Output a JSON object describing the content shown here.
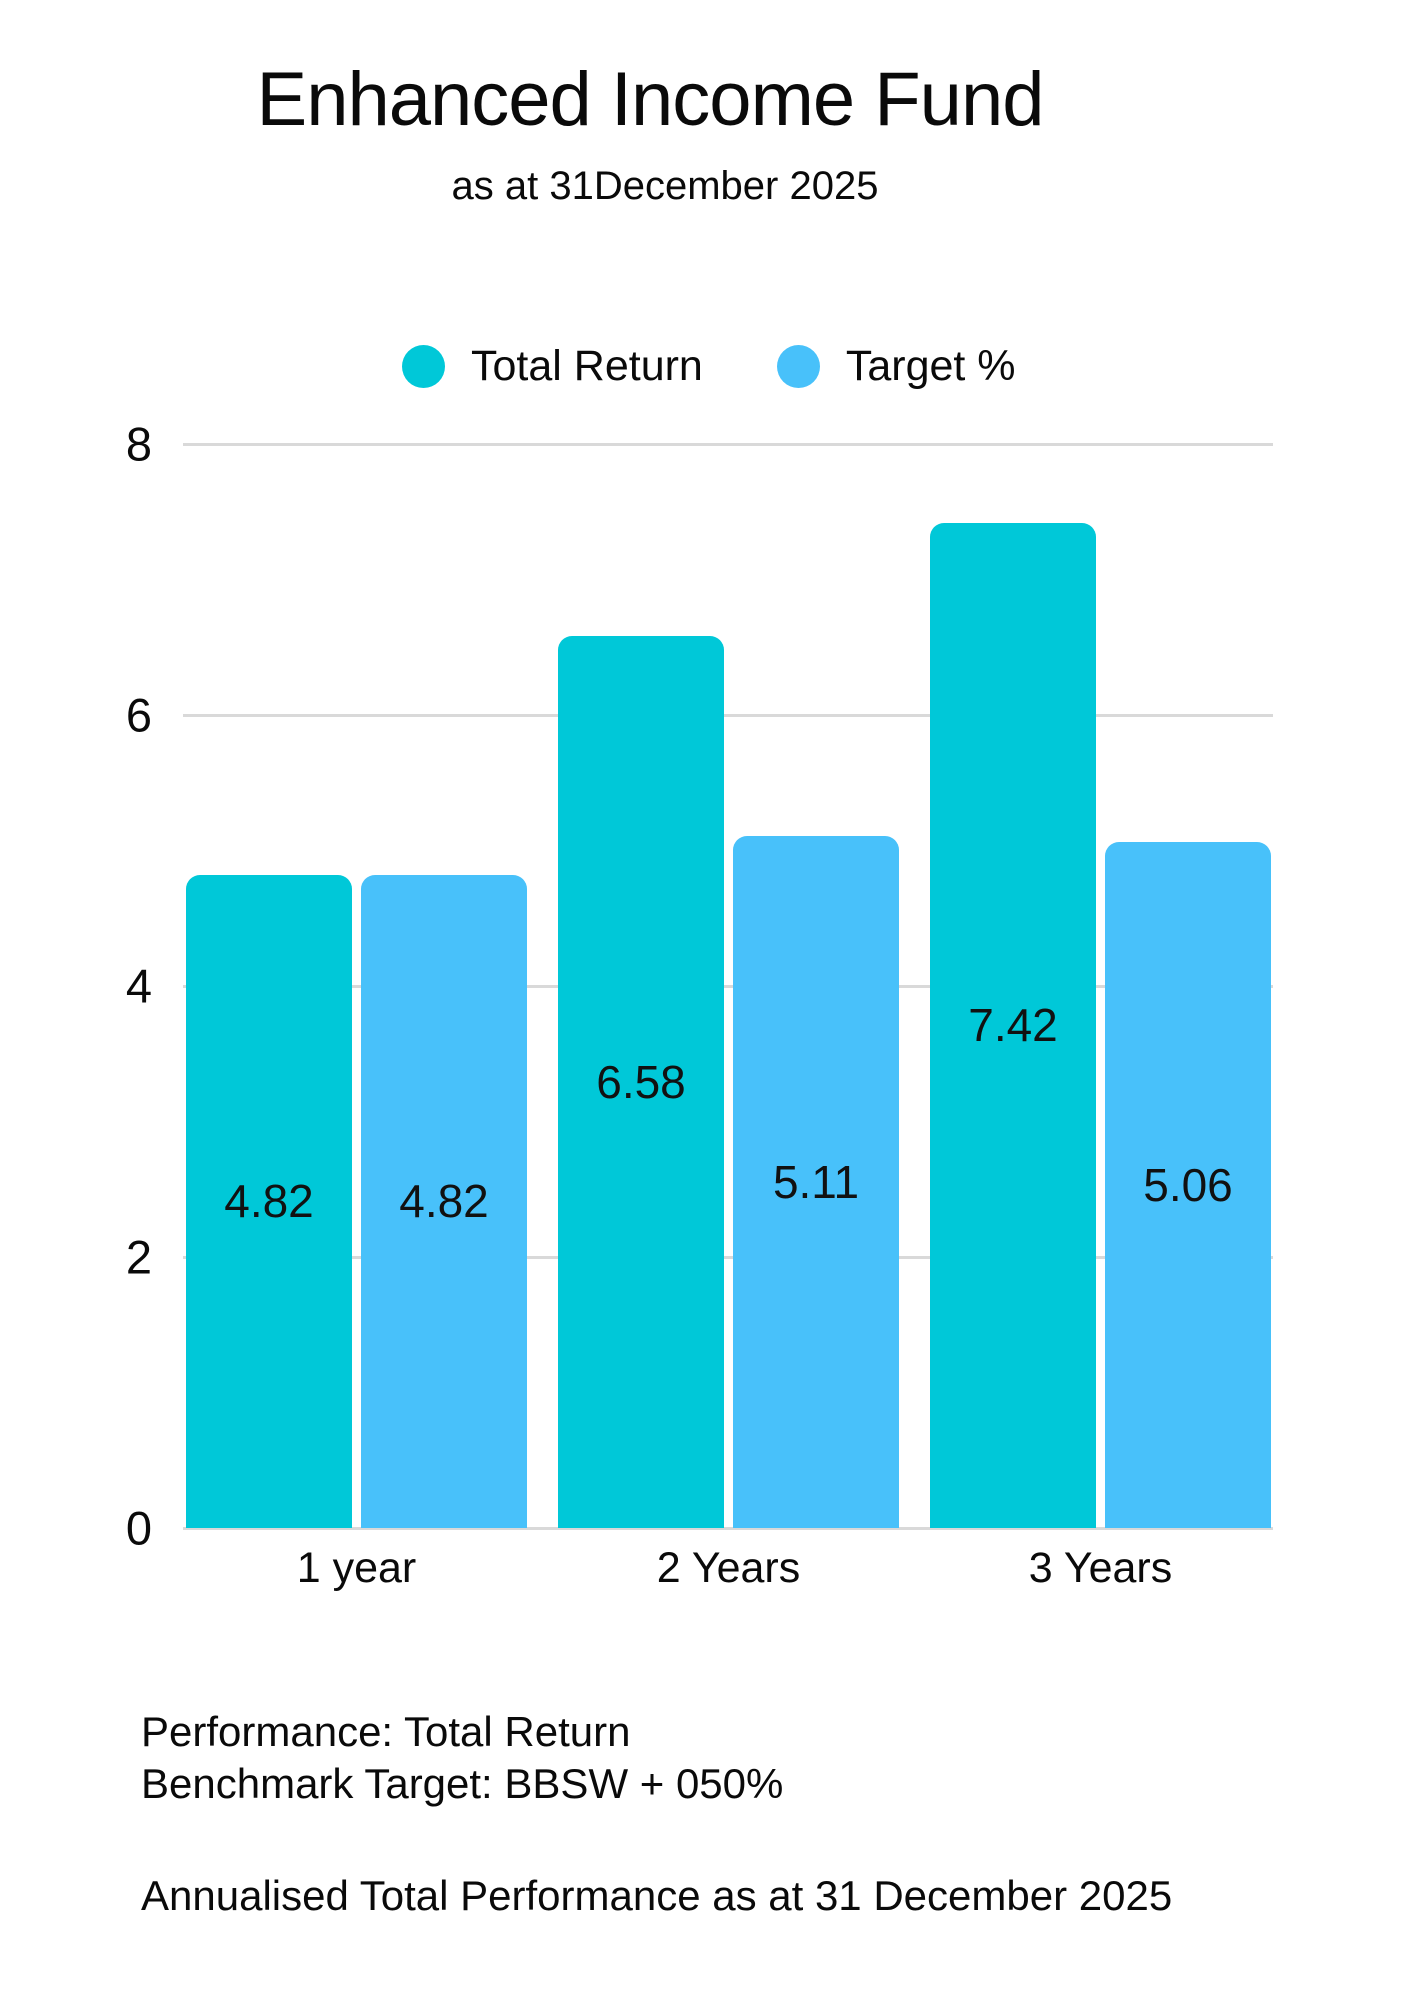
{
  "header": {
    "title": "Enhanced Income Fund",
    "subtitle": "as at 31December 2025"
  },
  "chart_data": {
    "type": "bar",
    "title": "Enhanced Income Fund",
    "subtitle": "as at 31December 2025",
    "categories": [
      "1 year",
      "2 Years",
      "3 Years"
    ],
    "series": [
      {
        "name": "Total Return",
        "color": "#00C8D8",
        "values": [
          4.82,
          6.58,
          7.42
        ]
      },
      {
        "name": "Target %",
        "color": "#48C1FA",
        "values": [
          4.82,
          5.11,
          5.06
        ]
      }
    ],
    "xlabel": "",
    "ylabel": "",
    "ylim": [
      0,
      8
    ],
    "yticks": [
      8,
      6,
      4,
      2,
      0
    ],
    "grid": true,
    "legend_position": "top",
    "value_labels": "centered-in-bar",
    "gridline_color": "#D9D9D9",
    "text_color": "#0A0A0A",
    "background_color": "#FFFFFF"
  },
  "footer": {
    "lines": [
      "Performance: Total Return",
      "Benchmark Target: BBSW + 050%",
      "Annualised Total Performance as at 31 December 2025"
    ]
  }
}
